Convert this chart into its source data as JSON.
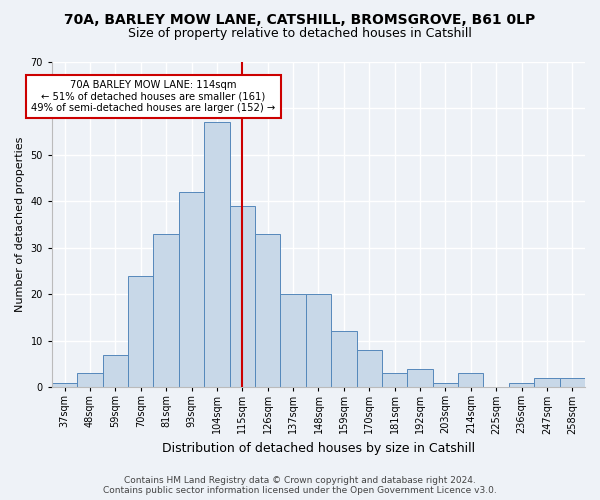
{
  "title1": "70A, BARLEY MOW LANE, CATSHILL, BROMSGROVE, B61 0LP",
  "title2": "Size of property relative to detached houses in Catshill",
  "xlabel": "Distribution of detached houses by size in Catshill",
  "ylabel": "Number of detached properties",
  "categories": [
    "37sqm",
    "48sqm",
    "59sqm",
    "70sqm",
    "81sqm",
    "93sqm",
    "104sqm",
    "115sqm",
    "126sqm",
    "137sqm",
    "148sqm",
    "159sqm",
    "170sqm",
    "181sqm",
    "192sqm",
    "203sqm",
    "214sqm",
    "225sqm",
    "236sqm",
    "247sqm",
    "258sqm"
  ],
  "values": [
    1,
    3,
    7,
    24,
    33,
    42,
    57,
    39,
    33,
    20,
    20,
    12,
    8,
    3,
    4,
    1,
    3,
    0,
    1,
    2,
    2
  ],
  "bar_color": "#c8d8e8",
  "bar_edge_color": "#5588bb",
  "vline_x_index": 7,
  "vline_color": "#cc0000",
  "annotation_text": "70A BARLEY MOW LANE: 114sqm\n← 51% of detached houses are smaller (161)\n49% of semi-detached houses are larger (152) →",
  "annotation_box_color": "#ffffff",
  "annotation_box_edge_color": "#cc0000",
  "ylim": [
    0,
    70
  ],
  "yticks": [
    0,
    10,
    20,
    30,
    40,
    50,
    60,
    70
  ],
  "footnote1": "Contains HM Land Registry data © Crown copyright and database right 2024.",
  "footnote2": "Contains public sector information licensed under the Open Government Licence v3.0.",
  "background_color": "#eef2f7",
  "grid_color": "#ffffff",
  "title1_fontsize": 10,
  "title2_fontsize": 9,
  "xlabel_fontsize": 9,
  "ylabel_fontsize": 8,
  "tick_fontsize": 7,
  "footnote_fontsize": 6.5
}
